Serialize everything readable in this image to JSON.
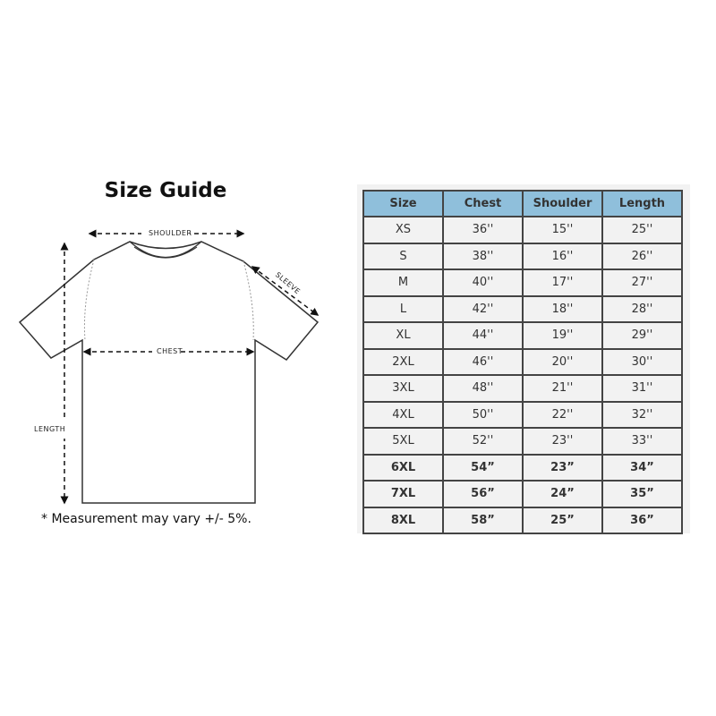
{
  "title": "Size Guide",
  "labels": {
    "shoulder": "SHOULDER",
    "sleeve": "SLEEVE",
    "chest": "CHEST",
    "length": "LENGTH"
  },
  "note": "* Measurement may vary +/- 5%.",
  "table": {
    "header_color": "#8fbfdb",
    "headers": [
      "Size",
      "Chest",
      "Shoulder",
      "Length"
    ],
    "rows": [
      [
        "XS",
        "36''",
        "15''",
        "25''"
      ],
      [
        "S",
        "38''",
        "16''",
        "26''"
      ],
      [
        "M",
        "40''",
        "17''",
        "27''"
      ],
      [
        "L",
        "42''",
        "18''",
        "28''"
      ],
      [
        "XL",
        "44''",
        "19''",
        "29''"
      ],
      [
        "2XL",
        "46''",
        "20''",
        "30''"
      ],
      [
        "3XL",
        "48''",
        "21''",
        "31''"
      ],
      [
        "4XL",
        "50''",
        "22''",
        "32''"
      ],
      [
        "5XL",
        "52''",
        "23''",
        "33''"
      ],
      [
        "6XL",
        "54”",
        "23”",
        "34”"
      ],
      [
        "7XL",
        "56”",
        "24”",
        "35”"
      ],
      [
        "8XL",
        "58”",
        "25”",
        "36”"
      ]
    ],
    "bold_from_row": 9
  }
}
